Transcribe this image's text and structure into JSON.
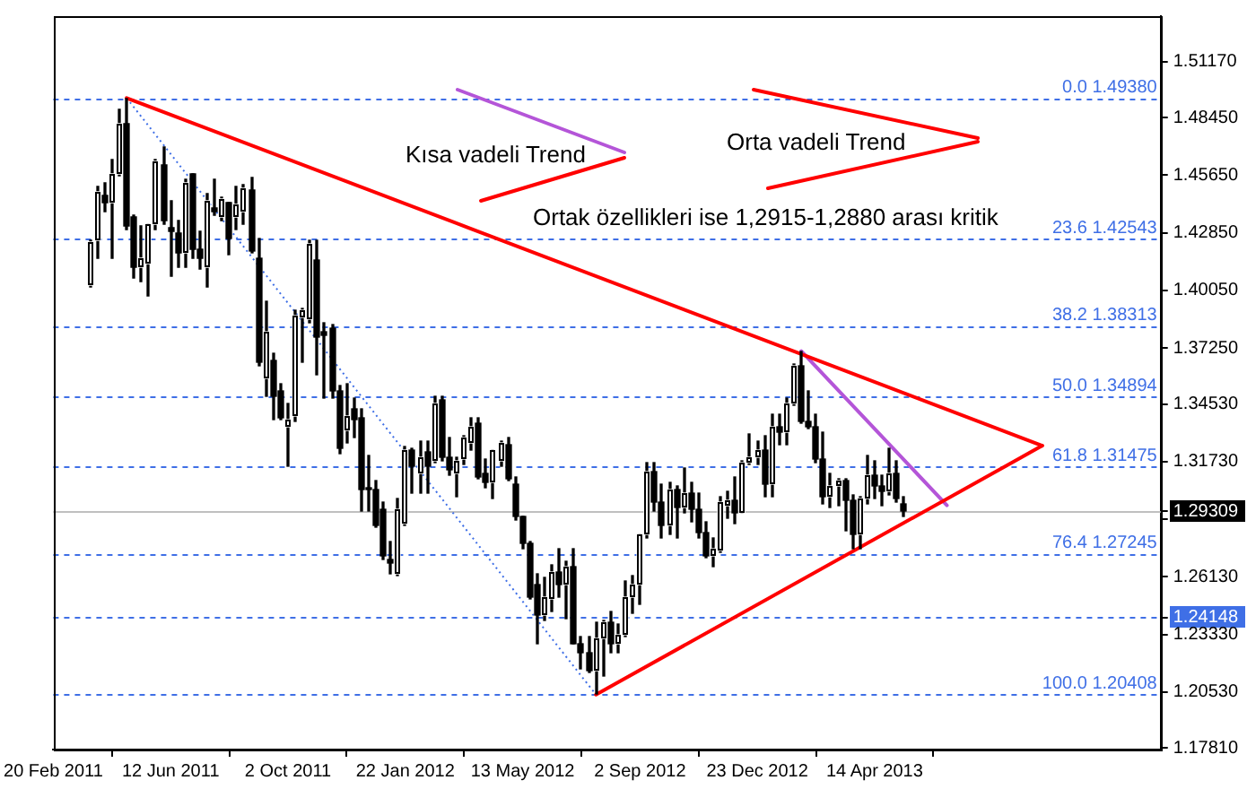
{
  "chart_data": {
    "type": "candlestick",
    "x": [
      "2011-03-27",
      "2011-04-03",
      "2011-04-10",
      "2011-04-17",
      "2011-04-24",
      "2011-05-01",
      "2011-05-08",
      "2011-05-15",
      "2011-05-22",
      "2011-05-29",
      "2011-06-05",
      "2011-06-12",
      "2011-06-19",
      "2011-06-26",
      "2011-07-03",
      "2011-07-10",
      "2011-07-17",
      "2011-07-24",
      "2011-07-31",
      "2011-08-07",
      "2011-08-14",
      "2011-08-21",
      "2011-08-28",
      "2011-09-04",
      "2011-09-11",
      "2011-09-18",
      "2011-09-25",
      "2011-10-02",
      "2011-10-09",
      "2011-10-16",
      "2011-10-23",
      "2011-10-30",
      "2011-11-06",
      "2011-11-13",
      "2011-11-20",
      "2011-11-27",
      "2011-12-04",
      "2011-12-11",
      "2011-12-18",
      "2011-12-25",
      "2012-01-01",
      "2012-01-08",
      "2012-01-15",
      "2012-01-22",
      "2012-01-29",
      "2012-02-05",
      "2012-02-12",
      "2012-02-19",
      "2012-02-26",
      "2012-03-04",
      "2012-03-11",
      "2012-03-18",
      "2012-03-25",
      "2012-04-01",
      "2012-04-08",
      "2012-04-15",
      "2012-04-22",
      "2012-04-29",
      "2012-05-06",
      "2012-05-13",
      "2012-05-20",
      "2012-05-27",
      "2012-06-03",
      "2012-06-10",
      "2012-06-17",
      "2012-06-24",
      "2012-07-01",
      "2012-07-08",
      "2012-07-15",
      "2012-07-22",
      "2012-07-29",
      "2012-08-05",
      "2012-08-12",
      "2012-08-19",
      "2012-08-26",
      "2012-09-02",
      "2012-09-09",
      "2012-09-16",
      "2012-09-23",
      "2012-09-30",
      "2012-10-07",
      "2012-10-14",
      "2012-10-21",
      "2012-10-28",
      "2012-11-04",
      "2012-11-11",
      "2012-11-18",
      "2012-11-25",
      "2012-12-02",
      "2012-12-09",
      "2012-12-16",
      "2012-12-23",
      "2012-12-30",
      "2013-01-06",
      "2013-01-13",
      "2013-01-20",
      "2013-01-27",
      "2013-02-03",
      "2013-02-10",
      "2013-02-17",
      "2013-02-24",
      "2013-03-03",
      "2013-03-10",
      "2013-03-17",
      "2013-03-24",
      "2013-03-31",
      "2013-04-07",
      "2013-04-14",
      "2013-04-21",
      "2013-04-28",
      "2013-05-05",
      "2013-05-12"
    ],
    "ohlc": [
      [
        1.4034,
        1.425,
        1.402,
        1.424
      ],
      [
        1.4245,
        1.4513,
        1.4161,
        1.4485
      ],
      [
        1.4465,
        1.4527,
        1.4392,
        1.4428
      ],
      [
        1.4428,
        1.464,
        1.4161,
        1.4569
      ],
      [
        1.4569,
        1.4887,
        1.456,
        1.4814
      ],
      [
        1.4814,
        1.4938,
        1.4302,
        1.4316
      ],
      [
        1.4364,
        1.437,
        1.4062,
        1.4119
      ],
      [
        1.4119,
        1.4316,
        1.4048,
        1.4161
      ],
      [
        1.4133,
        1.433,
        1.3978,
        1.4324
      ],
      [
        1.4324,
        1.464,
        1.43,
        1.4634
      ],
      [
        1.4617,
        1.4701,
        1.433,
        1.4344
      ],
      [
        1.431,
        1.4443,
        1.4077,
        1.4295
      ],
      [
        1.4279,
        1.4344,
        1.4119,
        1.4189
      ],
      [
        1.4189,
        1.4541,
        1.4119,
        1.4527
      ],
      [
        1.4569,
        1.4575,
        1.4161,
        1.4203
      ],
      [
        1.4203,
        1.4288,
        1.4105,
        1.4161
      ],
      [
        1.4119,
        1.4471,
        1.402,
        1.4443
      ],
      [
        1.4409,
        1.4541,
        1.4372,
        1.4392
      ],
      [
        1.4358,
        1.446,
        1.4345,
        1.4451
      ],
      [
        1.4429,
        1.4435,
        1.4175,
        1.426
      ],
      [
        1.4358,
        1.4513,
        1.4302,
        1.442
      ],
      [
        1.4386,
        1.452,
        1.433,
        1.4499
      ],
      [
        1.4493,
        1.4555,
        1.4189,
        1.4195
      ],
      [
        1.4161,
        1.426,
        1.364,
        1.3654
      ],
      [
        1.3575,
        1.395,
        1.3491,
        1.3801
      ],
      [
        1.3668,
        1.3696,
        1.3378,
        1.3491
      ],
      [
        1.3519,
        1.3555,
        1.3378,
        1.3387
      ],
      [
        1.3339,
        1.3457,
        1.3147,
        1.3378
      ],
      [
        1.3395,
        1.3905,
        1.337,
        1.3885
      ],
      [
        1.3874,
        1.3921,
        1.3654,
        1.3907
      ],
      [
        1.3865,
        1.4245,
        1.385,
        1.4231
      ],
      [
        1.4155,
        1.4245,
        1.3598,
        1.3781
      ],
      [
        1.38,
        1.385,
        1.348,
        1.3785
      ],
      [
        1.3817,
        1.384,
        1.3485,
        1.3519
      ],
      [
        1.3513,
        1.354,
        1.3209,
        1.3238
      ],
      [
        1.3325,
        1.3555,
        1.326,
        1.3396
      ],
      [
        1.3429,
        1.3485,
        1.3288,
        1.3378
      ],
      [
        1.3387,
        1.343,
        1.2936,
        1.3035
      ],
      [
        1.3045,
        1.3204,
        1.2936,
        1.3035
      ],
      [
        1.304,
        1.3077,
        1.2852,
        1.2866
      ],
      [
        1.2945,
        1.2978,
        1.2697,
        1.2711
      ],
      [
        1.2697,
        1.2781,
        1.2627,
        1.2683
      ],
      [
        1.2627,
        1.2992,
        1.2618,
        1.2945
      ],
      [
        1.2871,
        1.3246,
        1.2865,
        1.3226
      ],
      [
        1.3226,
        1.3235,
        1.3021,
        1.3148
      ],
      [
        1.3114,
        1.3274,
        1.3021,
        1.3195
      ],
      [
        1.3218,
        1.3274,
        1.3021,
        1.3153
      ],
      [
        1.3176,
        1.3491,
        1.317,
        1.3451
      ],
      [
        1.3471,
        1.3491,
        1.3176,
        1.319
      ],
      [
        1.319,
        1.3288,
        1.3105,
        1.3134
      ],
      [
        1.3114,
        1.319,
        1.3006,
        1.3176
      ],
      [
        1.3181,
        1.3295,
        1.316,
        1.3288
      ],
      [
        1.3266,
        1.3387,
        1.323,
        1.3344
      ],
      [
        1.3358,
        1.3387,
        1.3085,
        1.3097
      ],
      [
        1.3114,
        1.3181,
        1.3049,
        1.3071
      ],
      [
        1.3069,
        1.3226,
        1.2992,
        1.3226
      ],
      [
        1.3176,
        1.3274,
        1.315,
        1.326
      ],
      [
        1.3252,
        1.329,
        1.308,
        1.3085
      ],
      [
        1.3067,
        1.31,
        1.289,
        1.2908
      ],
      [
        1.2902,
        1.291,
        1.2753,
        1.2776
      ],
      [
        1.2776,
        1.278,
        1.2506,
        1.2514
      ],
      [
        1.2576,
        1.2627,
        1.2289,
        1.2429
      ],
      [
        1.2429,
        1.2612,
        1.24,
        1.2514
      ],
      [
        1.2509,
        1.267,
        1.2445,
        1.264
      ],
      [
        1.264,
        1.2748,
        1.2515,
        1.2574
      ],
      [
        1.2574,
        1.2692,
        1.2405,
        1.266
      ],
      [
        1.266,
        1.2748,
        1.2288,
        1.2289
      ],
      [
        1.2289,
        1.2325,
        1.2162,
        1.2246
      ],
      [
        1.2246,
        1.2325,
        1.2145,
        1.2155
      ],
      [
        1.2155,
        1.239,
        1.2041,
        1.2315
      ],
      [
        1.2315,
        1.2404,
        1.2134,
        1.2388
      ],
      [
        1.2388,
        1.2443,
        1.224,
        1.229
      ],
      [
        1.229,
        1.2385,
        1.2242,
        1.2334
      ],
      [
        1.2334,
        1.259,
        1.232,
        1.2514
      ],
      [
        1.2514,
        1.2617,
        1.2435,
        1.2575
      ],
      [
        1.2575,
        1.2815,
        1.2475,
        1.2815
      ],
      [
        1.2815,
        1.317,
        1.28,
        1.3125
      ],
      [
        1.3125,
        1.3171,
        1.2934,
        1.298
      ],
      [
        1.298,
        1.306,
        1.2802,
        1.2859
      ],
      [
        1.2859,
        1.3074,
        1.2823,
        1.304
      ],
      [
        1.304,
        1.3057,
        1.2805,
        1.2951
      ],
      [
        1.2951,
        1.314,
        1.2922,
        1.302
      ],
      [
        1.302,
        1.3071,
        1.288,
        1.294
      ],
      [
        1.294,
        1.302,
        1.28,
        1.283
      ],
      [
        1.283,
        1.288,
        1.2705,
        1.2712
      ],
      [
        1.2712,
        1.2802,
        1.266,
        1.2745
      ],
      [
        1.2742,
        1.3,
        1.273,
        1.2977
      ],
      [
        1.2958,
        1.303,
        1.29,
        1.2986
      ],
      [
        1.2986,
        1.31,
        1.2875,
        1.2925
      ],
      [
        1.2925,
        1.3175,
        1.292,
        1.3165
      ],
      [
        1.3165,
        1.3308,
        1.3155,
        1.3195
      ],
      [
        1.3195,
        1.327,
        1.316,
        1.3225
      ],
      [
        1.3225,
        1.33,
        1.2998,
        1.3064
      ],
      [
        1.3064,
        1.3405,
        1.2998,
        1.334
      ],
      [
        1.334,
        1.34,
        1.3255,
        1.3317
      ],
      [
        1.3317,
        1.348,
        1.3255,
        1.3459
      ],
      [
        1.3459,
        1.365,
        1.345,
        1.3638
      ],
      [
        1.3638,
        1.3711,
        1.3358,
        1.3365
      ],
      [
        1.3365,
        1.352,
        1.333,
        1.334
      ],
      [
        1.334,
        1.34,
        1.317,
        1.3187
      ],
      [
        1.3187,
        1.332,
        1.2965,
        1.3003
      ],
      [
        1.3003,
        1.3112,
        1.2953,
        1.305
      ],
      [
        1.305,
        1.3085,
        1.2955,
        1.308
      ],
      [
        1.308,
        1.3085,
        1.284,
        1.2987
      ],
      [
        1.2987,
        1.3015,
        1.275,
        1.282
      ],
      [
        1.282,
        1.3,
        1.2745,
        1.2994
      ],
      [
        1.2994,
        1.32,
        1.2967,
        1.311
      ],
      [
        1.311,
        1.3175,
        1.2997,
        1.3053
      ],
      [
        1.3053,
        1.311,
        1.2955,
        1.303
      ],
      [
        1.303,
        1.324,
        1.301,
        1.3115
      ],
      [
        1.3115,
        1.3175,
        1.2975,
        1.2995
      ],
      [
        1.2964,
        1.3,
        1.2902,
        1.2931
      ]
    ],
    "colors": [
      "#ffffff",
      "#ffffff",
      "#000000",
      "#ffffff",
      "#ffffff",
      "#000000",
      "#000000",
      "#ffffff",
      "#ffffff",
      "#ffffff",
      "#000000",
      "#000000",
      "#000000",
      "#ffffff",
      "#000000",
      "#000000",
      "#ffffff",
      "#000000",
      "#ffffff",
      "#000000",
      "#ffffff",
      "#ffffff",
      "#000000",
      "#000000",
      "#ffffff",
      "#000000",
      "#000000",
      "#ffffff",
      "#ffffff",
      "#ffffff",
      "#ffffff",
      "#000000",
      "#000000",
      "#000000",
      "#000000",
      "#ffffff",
      "#000000",
      "#000000",
      "#000000",
      "#000000",
      "#000000",
      "#000000",
      "#ffffff",
      "#ffffff",
      "#000000",
      "#ffffff",
      "#000000",
      "#ffffff",
      "#000000",
      "#000000",
      "#ffffff",
      "#ffffff",
      "#ffffff",
      "#000000",
      "#000000",
      "#ffffff",
      "#ffffff",
      "#000000",
      "#000000",
      "#000000",
      "#000000",
      "#000000",
      "#ffffff",
      "#ffffff",
      "#000000",
      "#ffffff",
      "#000000",
      "#000000",
      "#000000",
      "#ffffff",
      "#ffffff",
      "#000000",
      "#ffffff",
      "#ffffff",
      "#ffffff",
      "#ffffff",
      "#ffffff",
      "#000000",
      "#000000",
      "#ffffff",
      "#000000",
      "#ffffff",
      "#000000",
      "#000000",
      "#000000",
      "#ffffff",
      "#ffffff",
      "#ffffff",
      "#000000",
      "#ffffff",
      "#ffffff",
      "#ffffff",
      "#000000",
      "#ffffff",
      "#000000",
      "#ffffff",
      "#ffffff",
      "#000000",
      "#000000",
      "#000000",
      "#000000",
      "#ffffff",
      "#ffffff",
      "#000000",
      "#000000",
      "#ffffff",
      "#ffffff",
      "#000000",
      "#000000",
      "#ffffff",
      "#000000",
      "#000000"
    ],
    "series": [
      {
        "type": "line",
        "color": "#ff0000",
        "x": [
          "2011-05-01",
          "2013-09-21"
        ],
        "values": [
          1.494,
          1.325
        ]
      },
      {
        "type": "line",
        "color": "#ff0000",
        "x": [
          "2012-07-22",
          "2013-09-21"
        ],
        "values": [
          1.204,
          1.325
        ]
      },
      {
        "type": "line",
        "color": "#b455d8",
        "x": [
          "2013-02-03",
          "2013-06-22"
        ],
        "values": [
          1.371,
          1.296
        ]
      },
      {
        "type": "line",
        "color": "#3f6fe6",
        "line_style": "dotted",
        "x": [
          "2011-05-01",
          "2012-07-22"
        ],
        "values": [
          1.494,
          1.204
        ]
      }
    ],
    "xlim": [
      "2011-02-20",
      "2014-01-12"
    ],
    "xticks": [
      {
        "value": "2011-02-20",
        "label": "20 Feb 2011"
      },
      {
        "value": "2011-06-12",
        "label": "12 Jun 2011"
      },
      {
        "value": "2011-10-02",
        "label": "2 Oct 2011"
      },
      {
        "value": "2012-01-22",
        "label": "22 Jan 2012"
      },
      {
        "value": "2012-05-13",
        "label": "13 May 2012"
      },
      {
        "value": "2012-09-02",
        "label": "2 Sep 2012"
      },
      {
        "value": "2012-12-23",
        "label": "23 Dec 2012"
      },
      {
        "value": "2013-04-14",
        "label": "14 Apr 2013"
      }
    ],
    "ylim": [
      1.1773,
      1.5338
    ],
    "yticks": [
      {
        "value": 1.1781,
        "label": "1.17810"
      },
      {
        "value": 1.2053,
        "label": "1.20530"
      },
      {
        "value": 1.2333,
        "label": "1.23330"
      },
      1.24148,
      {
        "value": 1.2613,
        "label": "1.26130"
      },
      {
        "value": 1.2893,
        "label": null
      },
      1.29309,
      {
        "value": 1.3173,
        "label": "1.31730"
      },
      {
        "value": 1.3453,
        "label": "1.34530"
      },
      {
        "value": 1.3725,
        "label": "1.37250"
      },
      {
        "value": 1.4005,
        "label": "1.40050"
      },
      {
        "value": 1.4285,
        "label": "1.42850"
      },
      {
        "value": 1.4565,
        "label": "1.45650"
      },
      {
        "value": 1.4845,
        "label": "1.48450"
      },
      {
        "value": 1.5117,
        "label": "1.51170"
      }
    ],
    "ref_lines": [
      {
        "axis": "y",
        "value": 1.4938,
        "label": "0.0 1.49380",
        "color": "#3f6fe6",
        "line_style": "dashed"
      },
      {
        "axis": "y",
        "value": 1.42543,
        "label": "23.6 1.42543",
        "color": "#3f6fe6",
        "line_style": "dashed"
      },
      {
        "axis": "y",
        "value": 1.38313,
        "label": "38.2 1.38313",
        "color": "#3f6fe6",
        "line_style": "dashed"
      },
      {
        "axis": "y",
        "value": 1.34894,
        "label": "50.0 1.34894",
        "color": "#3f6fe6",
        "line_style": "dashed"
      },
      {
        "axis": "y",
        "value": 1.31475,
        "label": "61.8 1.31475",
        "color": "#3f6fe6",
        "line_style": "dashed"
      },
      {
        "axis": "y",
        "value": 1.27245,
        "label": "76.4 1.27245",
        "color": "#3f6fe6",
        "line_style": "dashed"
      },
      {
        "axis": "y",
        "value": 1.20408,
        "label": "100.0 1.20408",
        "color": "#3f6fe6",
        "line_style": "dashed"
      },
      {
        "axis": "y",
        "value": 1.29309,
        "color": "#c0c0c0",
        "line_style": "solid"
      },
      {
        "axis": "y",
        "value": 1.24148,
        "color": "#3f6fe6",
        "line_style": "dashed"
      }
    ],
    "annotations": [
      "Kısa vadeli Trend",
      "Orta vadeli Trend",
      "Ortak özellikleri ise 1,2915-1,2880 arası kritik"
    ]
  }
}
